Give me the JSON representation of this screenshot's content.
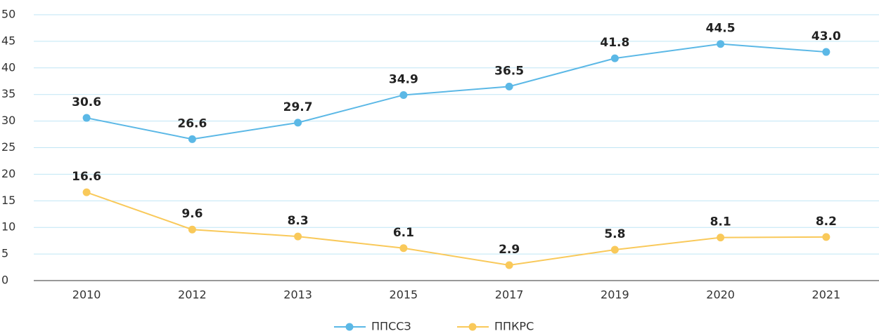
{
  "chart_data": {
    "type": "line",
    "categories": [
      "2010",
      "2012",
      "2013",
      "2015",
      "2017",
      "2019",
      "2020",
      "2021"
    ],
    "series": [
      {
        "name": "ППССЗ",
        "color": "#5bb8e6",
        "values": [
          30.6,
          26.6,
          29.7,
          34.9,
          36.5,
          41.8,
          44.5,
          43.0
        ],
        "value_labels": [
          "30.6",
          "26.6",
          "29.7",
          "34.9",
          "36.5",
          "41.8",
          "44.5",
          "43.0"
        ]
      },
      {
        "name": "ППКРС",
        "color": "#f9c95a",
        "values": [
          16.6,
          9.6,
          8.3,
          6.1,
          2.9,
          5.8,
          8.1,
          8.2
        ],
        "value_labels": [
          "16.6",
          "9.6",
          "8.3",
          "6.1",
          "2.9",
          "5.8",
          "8.1",
          "8.2"
        ]
      }
    ],
    "ylim": [
      0,
      50
    ],
    "yticks": [
      0,
      5,
      10,
      15,
      20,
      25,
      30,
      35,
      40,
      45,
      50
    ],
    "grid": true,
    "legend": "bottom"
  }
}
